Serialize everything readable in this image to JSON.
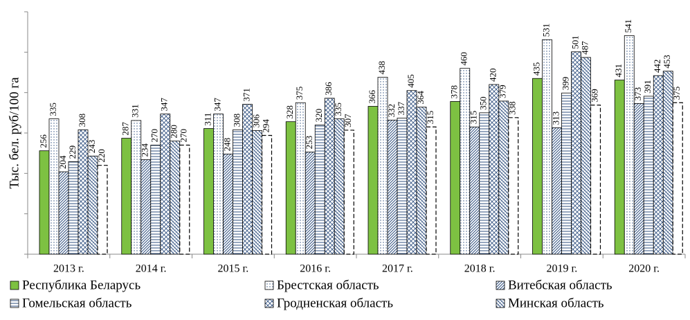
{
  "chart_data": {
    "type": "bar",
    "ylabel": "Тыс. бел. руб/100 га",
    "categories": [
      "2013 г.",
      "2014 г.",
      "2015 г.",
      "2016 г.",
      "2017 г.",
      "2018 г.",
      "2019 г.",
      "2020 г."
    ],
    "ylim": [
      0,
      600
    ],
    "yticks": [
      0,
      100,
      200,
      300,
      400,
      500,
      600
    ],
    "series": [
      {
        "name": "Республика Беларусь",
        "color": "#7dc142",
        "pattern": "solid",
        "values": [
          256,
          287,
          311,
          328,
          366,
          378,
          435,
          431
        ]
      },
      {
        "name": "Брестская область",
        "color": "#2f4f7f",
        "pattern": "dots",
        "values": [
          335,
          331,
          347,
          375,
          438,
          460,
          531,
          541
        ]
      },
      {
        "name": "Витебская область",
        "color": "#2f4f7f",
        "pattern": "diagonal",
        "values": [
          204,
          234,
          248,
          253,
          332,
          315,
          313,
          373
        ]
      },
      {
        "name": "Гомельская область",
        "color": "#2f4f7f",
        "pattern": "horizontal",
        "values": [
          229,
          270,
          308,
          320,
          337,
          350,
          399,
          391
        ]
      },
      {
        "name": "Гродненская область",
        "color": "#2f4f7f",
        "pattern": "cross",
        "values": [
          308,
          347,
          371,
          386,
          405,
          420,
          501,
          442
        ]
      },
      {
        "name": "Минская область",
        "color": "#2f4f7f",
        "pattern": "diagonal-back",
        "values": [
          243,
          280,
          306,
          335,
          364,
          379,
          487,
          453
        ]
      },
      {
        "color": "#000000",
        "pattern": "dashed",
        "values": [
          220,
          270,
          294,
          307,
          315,
          338,
          369,
          375
        ]
      }
    ]
  }
}
